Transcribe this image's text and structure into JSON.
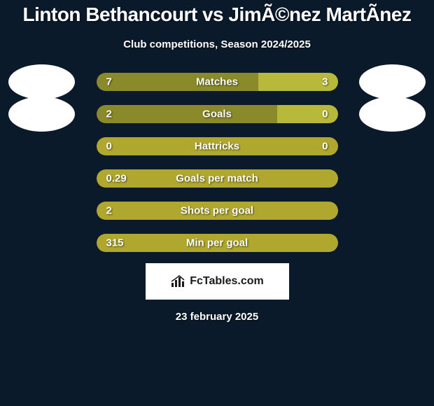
{
  "title": "Linton Bethancourt vs JimÃ©nez MartÃ­nez",
  "subtitle": "Club competitions, Season 2024/2025",
  "colors": {
    "background": "#0a1a2a",
    "bar_bg": "#5a5a3a",
    "bar_left": "#8a8a2a",
    "bar_right": "#b8b83a",
    "avatar": "#ffffff",
    "text": "#ffffff"
  },
  "bar_container_width": 345,
  "stats": [
    {
      "label": "Matches",
      "left_value": "7",
      "right_value": "3",
      "left_width_pct": 67,
      "right_width_pct": 33,
      "left_color": "#8a8a2a",
      "right_color": "#b8b83a",
      "show_avatars": true
    },
    {
      "label": "Goals",
      "left_value": "2",
      "right_value": "0",
      "left_width_pct": 75,
      "right_width_pct": 25,
      "left_color": "#8a8a2a",
      "right_color": "#b8b83a",
      "show_avatars": true
    },
    {
      "label": "Hattricks",
      "left_value": "0",
      "right_value": "0",
      "left_width_pct": 100,
      "right_width_pct": 0,
      "left_color": "#b0a82e",
      "right_color": "#b8b83a",
      "show_avatars": false
    },
    {
      "label": "Goals per match",
      "left_value": "0.29",
      "right_value": "",
      "left_width_pct": 100,
      "right_width_pct": 0,
      "left_color": "#b0a82e",
      "right_color": "#b8b83a",
      "show_avatars": false
    },
    {
      "label": "Shots per goal",
      "left_value": "2",
      "right_value": "",
      "left_width_pct": 100,
      "right_width_pct": 0,
      "left_color": "#b0a82e",
      "right_color": "#b8b83a",
      "show_avatars": false
    },
    {
      "label": "Min per goal",
      "left_value": "315",
      "right_value": "",
      "left_width_pct": 100,
      "right_width_pct": 0,
      "left_color": "#b0a82e",
      "right_color": "#b8b83a",
      "show_avatars": false
    }
  ],
  "logo": {
    "text": "FcTables.com"
  },
  "date": "23 february 2025"
}
